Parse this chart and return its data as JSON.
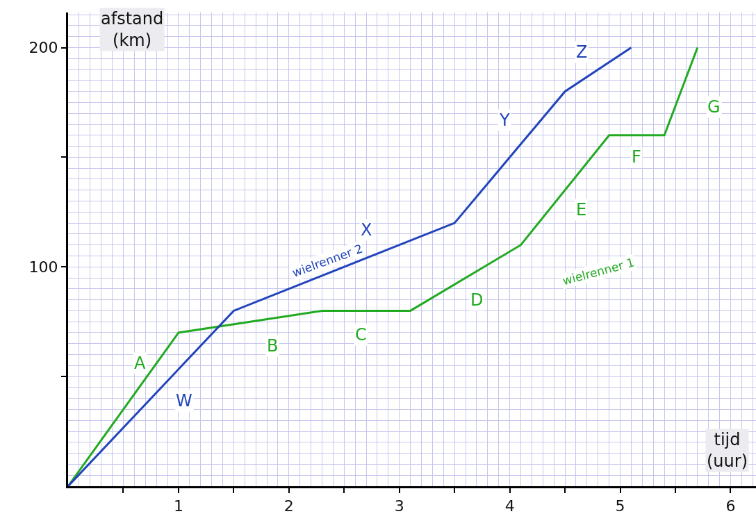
{
  "chart_data": {
    "type": "line",
    "xlabel": "tijd\n(uur)",
    "ylabel": "afstand\n(km)",
    "series": [
      {
        "name": "wielrenner 1",
        "color": "#22aa22",
        "x": [
          0,
          1,
          2.3,
          3.1,
          4.1,
          4.9,
          5.4,
          5.7
        ],
        "values": [
          0,
          70,
          80,
          80,
          110,
          160,
          160,
          200
        ]
      },
      {
        "name": "wielrenner 2",
        "color": "#2244bb",
        "x": [
          0,
          1.5,
          3.5,
          4.5,
          5.1
        ],
        "values": [
          0,
          80,
          120,
          180,
          200
        ]
      }
    ],
    "xlim": [
      0,
      6.23
    ],
    "ylim": [
      0,
      216
    ],
    "xticks": [
      {
        "value": 0.5,
        "label": null
      },
      1,
      {
        "value": 1.5,
        "label": null
      },
      2,
      {
        "value": 2.5,
        "label": null
      },
      3,
      {
        "value": 3.5,
        "label": null
      },
      4,
      {
        "value": 4.5,
        "label": null
      },
      5,
      {
        "value": 5.5,
        "label": null
      },
      6
    ],
    "yticks": [
      {
        "value": 50,
        "label": null
      },
      100,
      {
        "value": 150,
        "label": null
      },
      200
    ],
    "grid": true,
    "legend": false,
    "marker": "none",
    "line_style": "solid",
    "annotations": [
      {
        "text": "A",
        "x": 0.65,
        "y": 56
      },
      {
        "text": "B",
        "x": 1.85,
        "y": 64
      },
      {
        "text": "C",
        "x": 2.65,
        "y": 69
      },
      {
        "text": "D",
        "x": 3.7,
        "y": 85
      },
      {
        "text": "E",
        "x": 4.65,
        "y": 126
      },
      {
        "text": "F",
        "x": 5.15,
        "y": 150
      },
      {
        "text": "G",
        "x": 5.85,
        "y": 173
      },
      {
        "text": "W",
        "x": 1.05,
        "y": 39
      },
      {
        "text": "X",
        "x": 2.7,
        "y": 117
      },
      {
        "text": "Y",
        "x": 3.95,
        "y": 167
      },
      {
        "text": "Z",
        "x": 4.65,
        "y": 198
      }
    ]
  }
}
